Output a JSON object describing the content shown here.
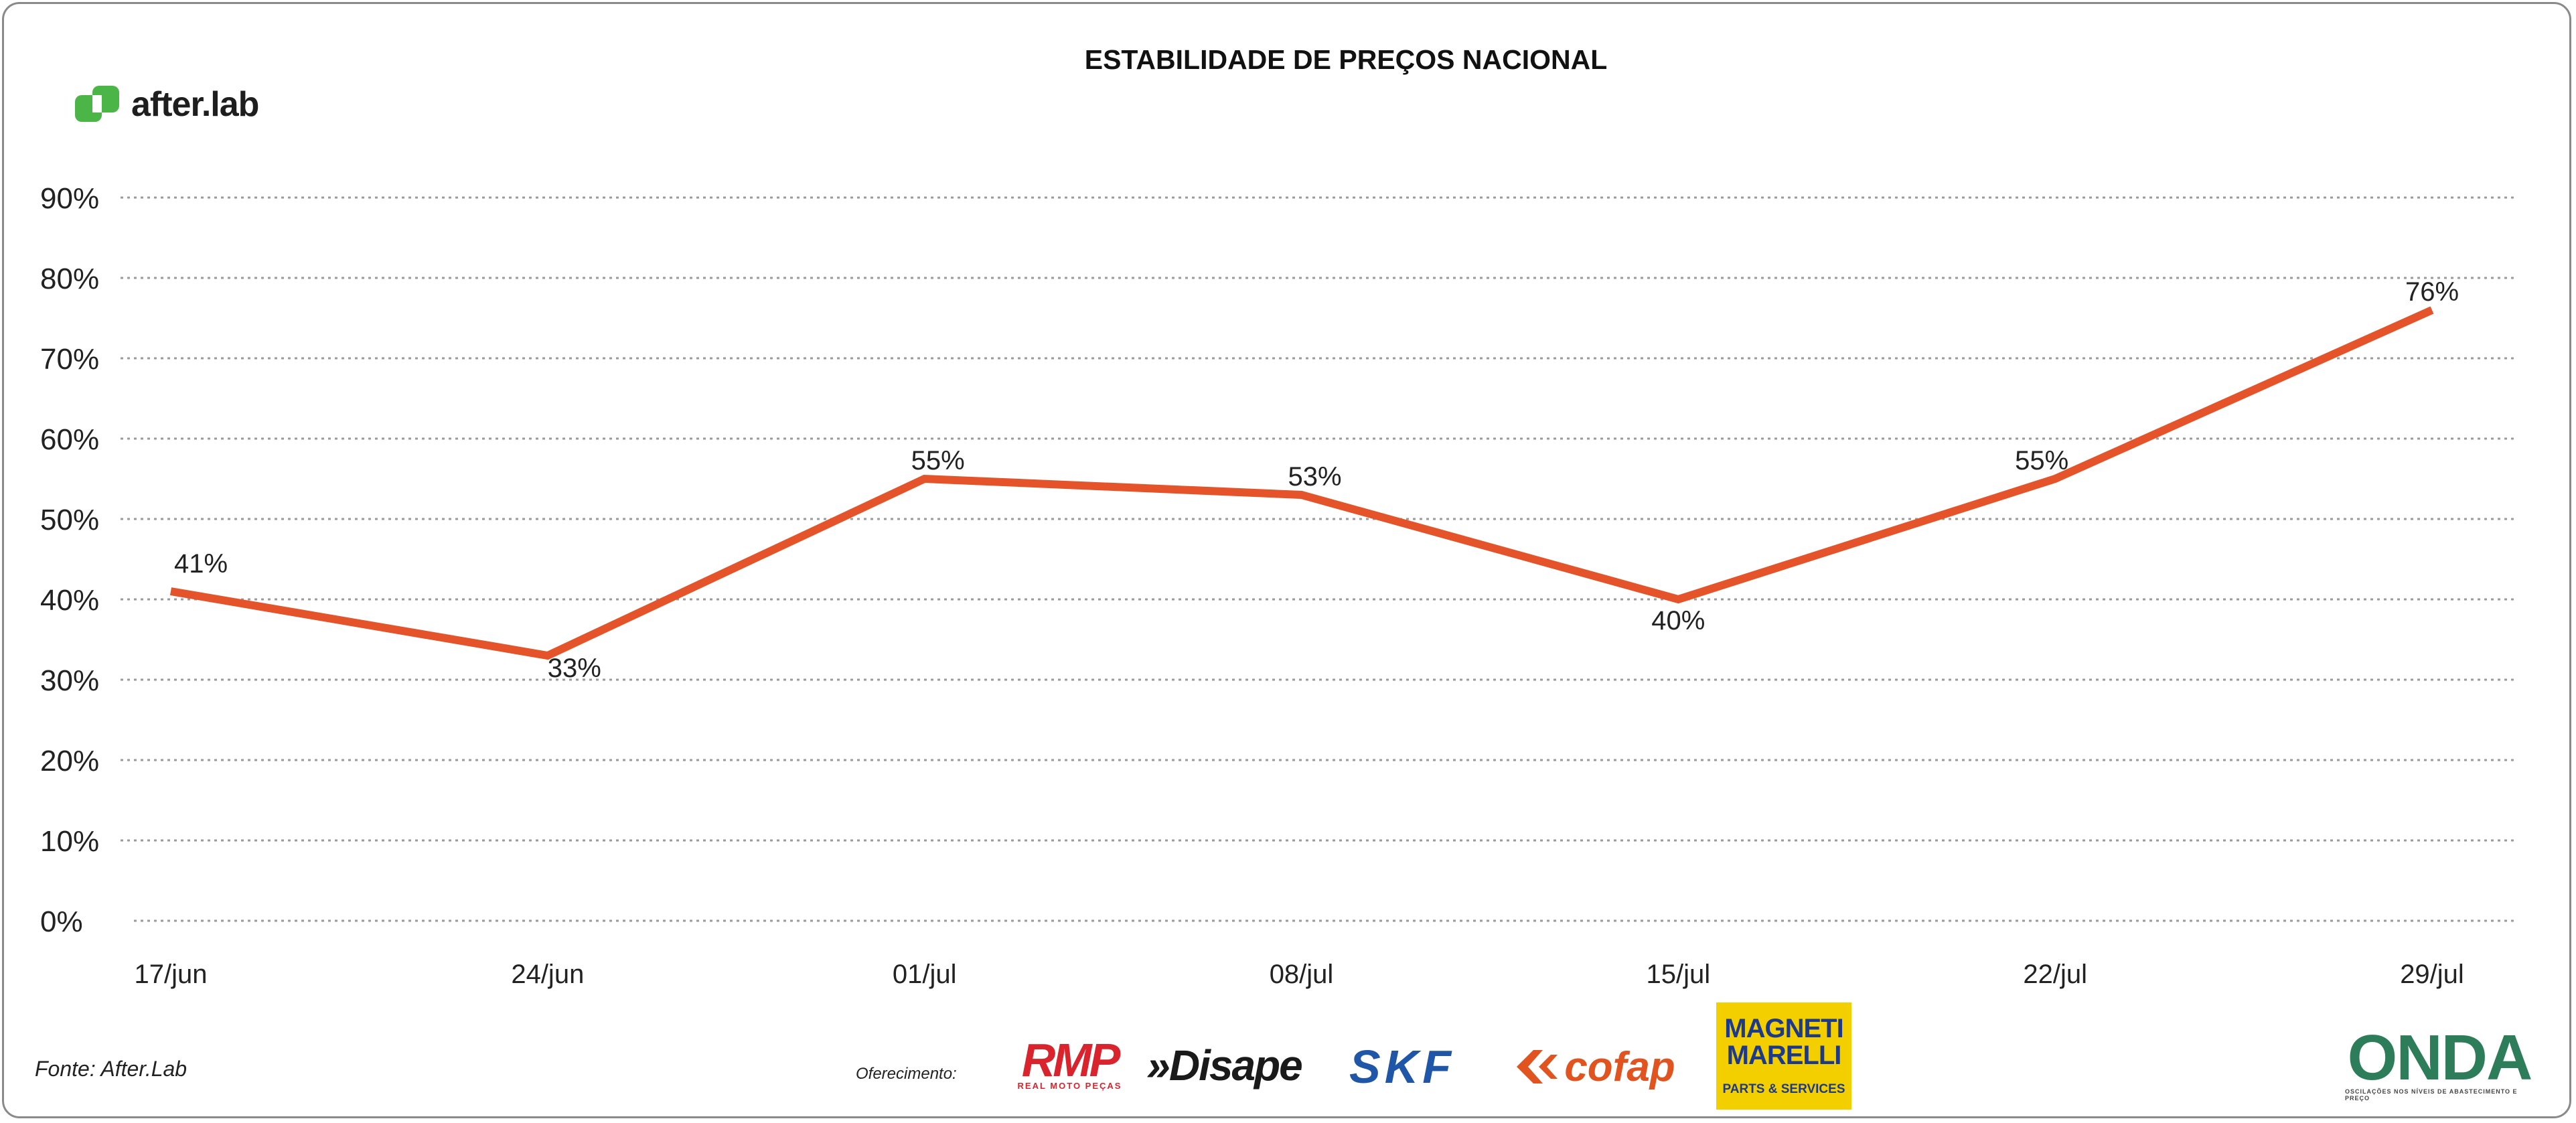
{
  "chart_data": {
    "type": "line",
    "title": "ESTABILIDADE DE PREÇOS NACIONAL",
    "categories": [
      "17/jun",
      "24/jun",
      "01/jul",
      "08/jul",
      "15/jul",
      "22/jul",
      "29/jul"
    ],
    "series": [
      {
        "values": [
          41,
          33,
          55,
          53,
          40,
          55,
          76
        ],
        "labels": [
          "41%",
          "33%",
          "55%",
          "53%",
          "40%",
          "55%",
          "76%"
        ]
      }
    ],
    "y_ticks": [
      "0%",
      "10%",
      "20%",
      "30%",
      "40%",
      "50%",
      "60%",
      "70%",
      "80%",
      "90%"
    ],
    "ylim": [
      0,
      90
    ],
    "grid": true,
    "line_color": "#e4532a",
    "grid_color": "#9a9a9a"
  },
  "brand": {
    "name": "after.lab",
    "color": "#4cb548"
  },
  "footer": {
    "source": "Fonte: After.Lab",
    "sponsor_label": "Oferecimento:",
    "sponsors": {
      "rmp": "RMP",
      "rmp_sub": "REAL MOTO PEÇAS",
      "disape": "»Disape",
      "skf": "SKF",
      "cofap": "cofap",
      "magneti": "MAGNETI MARELLI",
      "magneti_sub": "PARTS & SERVICES",
      "onda": "ONDA",
      "onda_sub": "OSCILAÇÕES NOS NÍVEIS DE ABASTECIMENTO E PREÇO"
    }
  }
}
